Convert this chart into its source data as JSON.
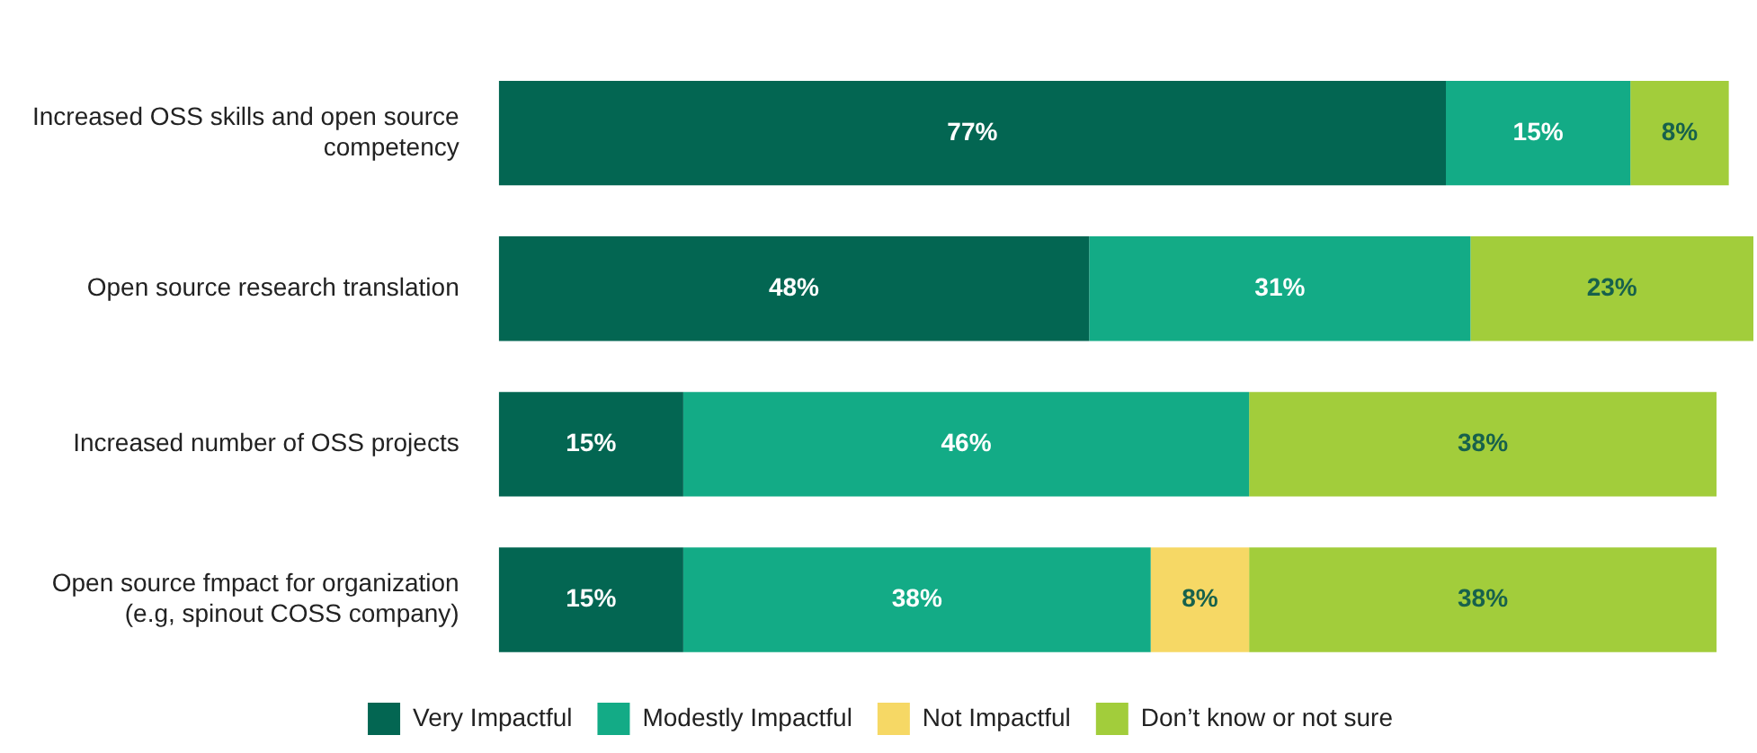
{
  "chart_data": {
    "type": "bar",
    "orientation": "horizontal",
    "stacked": true,
    "categories": [
      "Increased OSS skills and open source competency",
      "Open source research translation",
      "Increased number of OSS projects",
      "Open source fmpact for organization (e.g, spinout COSS company)"
    ],
    "series": [
      {
        "name": "Very Impactful",
        "color": "#036652",
        "values": [
          77,
          48,
          15,
          15
        ],
        "value_labels": [
          "77%",
          "48%",
          "15%",
          "15%"
        ]
      },
      {
        "name": "Modestly Impactful",
        "color": "#13ab86",
        "values": [
          15,
          31,
          46,
          38
        ],
        "value_labels": [
          "15%",
          "31%",
          "46%",
          "38%"
        ]
      },
      {
        "name": "Not Impactful",
        "color": "#f6d865",
        "values": [
          null,
          null,
          null,
          8
        ],
        "value_labels": [
          null,
          null,
          null,
          "8%"
        ]
      },
      {
        "name": "Don’t know or not sure",
        "color": "#a2cd3b",
        "values": [
          8,
          23,
          38,
          38
        ],
        "value_labels": [
          "8%",
          "23%",
          "38%",
          "38%"
        ]
      }
    ],
    "xlim": [
      0,
      102
    ],
    "tick_labels": "y",
    "grid": false,
    "legend": "bottom"
  }
}
